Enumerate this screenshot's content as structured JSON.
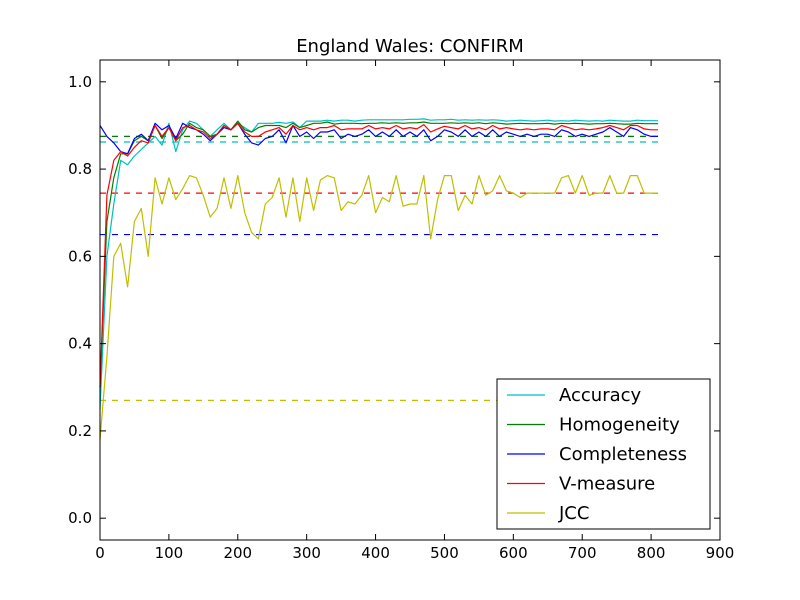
{
  "chart_data": {
    "type": "line",
    "title": "England Wales: CONFIRM",
    "xlabel": "",
    "ylabel": "",
    "xlim": [
      0,
      900
    ],
    "ylim": [
      -0.05,
      1.05
    ],
    "xticks": [
      0,
      100,
      200,
      300,
      400,
      500,
      600,
      700,
      800,
      900
    ],
    "yticks": [
      0.0,
      0.2,
      0.4,
      0.6,
      0.8,
      1.0
    ],
    "xtick_labels": [
      "0",
      "100",
      "200",
      "300",
      "400",
      "500",
      "600",
      "700",
      "800",
      "900"
    ],
    "ytick_labels": [
      "0.0",
      "0.2",
      "0.4",
      "0.6",
      "0.8",
      "1.0"
    ],
    "grid": false,
    "legend_position": "lower-right",
    "x": [
      0,
      10,
      20,
      30,
      40,
      50,
      60,
      70,
      80,
      90,
      100,
      110,
      120,
      130,
      140,
      150,
      160,
      170,
      180,
      190,
      200,
      210,
      220,
      230,
      240,
      250,
      260,
      270,
      280,
      290,
      300,
      310,
      320,
      330,
      340,
      350,
      360,
      370,
      380,
      390,
      400,
      410,
      420,
      430,
      440,
      450,
      460,
      470,
      480,
      490,
      500,
      510,
      520,
      530,
      540,
      550,
      560,
      570,
      580,
      590,
      600,
      610,
      620,
      630,
      640,
      650,
      660,
      670,
      680,
      690,
      700,
      710,
      720,
      730,
      740,
      750,
      760,
      770,
      780,
      790,
      800,
      810
    ],
    "series": [
      {
        "name": "Accuracy",
        "color": "#00bfbf",
        "values": [
          0.25,
          0.6,
          0.72,
          0.82,
          0.81,
          0.83,
          0.845,
          0.86,
          0.875,
          0.855,
          0.905,
          0.84,
          0.89,
          0.91,
          0.905,
          0.89,
          0.875,
          0.89,
          0.905,
          0.89,
          0.905,
          0.895,
          0.885,
          0.905,
          0.905,
          0.905,
          0.907,
          0.905,
          0.908,
          0.895,
          0.91,
          0.91,
          0.91,
          0.912,
          0.91,
          0.912,
          0.912,
          0.91,
          0.912,
          0.913,
          0.913,
          0.913,
          0.913,
          0.913,
          0.913,
          0.914,
          0.914,
          0.915,
          0.912,
          0.913,
          0.913,
          0.914,
          0.912,
          0.913,
          0.912,
          0.913,
          0.912,
          0.913,
          0.912,
          0.91,
          0.911,
          0.912,
          0.911,
          0.91,
          0.911,
          0.912,
          0.91,
          0.911,
          0.91,
          0.912,
          0.911,
          0.91,
          0.911,
          0.91,
          0.912,
          0.911,
          0.91,
          0.91,
          0.912,
          0.911,
          0.911,
          0.911
        ]
      },
      {
        "name": "Homogeneity",
        "color": "#008000",
        "values": [
          0.3,
          0.68,
          0.78,
          0.835,
          0.835,
          0.865,
          0.875,
          0.865,
          0.9,
          0.87,
          0.895,
          0.865,
          0.88,
          0.905,
          0.895,
          0.89,
          0.875,
          0.88,
          0.9,
          0.89,
          0.91,
          0.89,
          0.885,
          0.895,
          0.9,
          0.9,
          0.9,
          0.895,
          0.905,
          0.895,
          0.9,
          0.905,
          0.905,
          0.908,
          0.903,
          0.905,
          0.905,
          0.905,
          0.904,
          0.905,
          0.905,
          0.906,
          0.905,
          0.906,
          0.905,
          0.906,
          0.906,
          0.908,
          0.905,
          0.905,
          0.905,
          0.906,
          0.905,
          0.906,
          0.905,
          0.906,
          0.904,
          0.906,
          0.905,
          0.903,
          0.904,
          0.905,
          0.904,
          0.904,
          0.904,
          0.905,
          0.903,
          0.905,
          0.904,
          0.905,
          0.904,
          0.903,
          0.904,
          0.904,
          0.905,
          0.904,
          0.903,
          0.903,
          0.905,
          0.904,
          0.904,
          0.904
        ]
      },
      {
        "name": "Completeness",
        "color": "#0000ff",
        "values": [
          0.9,
          0.875,
          0.86,
          0.84,
          0.835,
          0.87,
          0.88,
          0.865,
          0.905,
          0.89,
          0.9,
          0.87,
          0.905,
          0.895,
          0.89,
          0.88,
          0.865,
          0.88,
          0.895,
          0.89,
          0.905,
          0.88,
          0.86,
          0.855,
          0.87,
          0.875,
          0.89,
          0.86,
          0.9,
          0.875,
          0.885,
          0.87,
          0.885,
          0.885,
          0.89,
          0.87,
          0.88,
          0.875,
          0.88,
          0.89,
          0.875,
          0.885,
          0.875,
          0.89,
          0.875,
          0.885,
          0.875,
          0.89,
          0.865,
          0.875,
          0.89,
          0.885,
          0.875,
          0.89,
          0.875,
          0.885,
          0.875,
          0.89,
          0.875,
          0.885,
          0.88,
          0.875,
          0.88,
          0.875,
          0.88,
          0.88,
          0.875,
          0.89,
          0.885,
          0.875,
          0.88,
          0.875,
          0.88,
          0.885,
          0.895,
          0.885,
          0.875,
          0.895,
          0.89,
          0.88,
          0.875,
          0.875
        ]
      },
      {
        "name": "V-measure",
        "color": "#ff0000",
        "values": [
          0.3,
          0.74,
          0.82,
          0.84,
          0.83,
          0.85,
          0.865,
          0.86,
          0.9,
          0.875,
          0.895,
          0.865,
          0.895,
          0.9,
          0.89,
          0.885,
          0.87,
          0.88,
          0.9,
          0.89,
          0.905,
          0.885,
          0.875,
          0.875,
          0.885,
          0.89,
          0.895,
          0.88,
          0.9,
          0.89,
          0.895,
          0.89,
          0.895,
          0.895,
          0.9,
          0.89,
          0.892,
          0.892,
          0.892,
          0.9,
          0.892,
          0.895,
          0.892,
          0.9,
          0.892,
          0.895,
          0.892,
          0.902,
          0.885,
          0.892,
          0.898,
          0.895,
          0.892,
          0.9,
          0.892,
          0.895,
          0.89,
          0.9,
          0.892,
          0.895,
          0.892,
          0.89,
          0.892,
          0.89,
          0.892,
          0.892,
          0.89,
          0.9,
          0.895,
          0.89,
          0.892,
          0.89,
          0.892,
          0.895,
          0.9,
          0.895,
          0.89,
          0.9,
          0.9,
          0.892,
          0.89,
          0.89
        ]
      },
      {
        "name": "JCC",
        "color": "#bfbf00",
        "values": [
          0.18,
          0.37,
          0.6,
          0.63,
          0.53,
          0.68,
          0.71,
          0.6,
          0.78,
          0.72,
          0.78,
          0.73,
          0.755,
          0.785,
          0.78,
          0.74,
          0.69,
          0.71,
          0.78,
          0.71,
          0.785,
          0.7,
          0.655,
          0.64,
          0.72,
          0.735,
          0.78,
          0.69,
          0.78,
          0.68,
          0.78,
          0.705,
          0.775,
          0.785,
          0.78,
          0.705,
          0.725,
          0.72,
          0.74,
          0.785,
          0.7,
          0.735,
          0.725,
          0.785,
          0.715,
          0.72,
          0.72,
          0.785,
          0.64,
          0.73,
          0.785,
          0.785,
          0.705,
          0.74,
          0.72,
          0.785,
          0.74,
          0.75,
          0.785,
          0.75,
          0.745,
          0.735,
          0.745,
          0.745,
          0.745,
          0.745,
          0.745,
          0.78,
          0.785,
          0.745,
          0.785,
          0.74,
          0.745,
          0.745,
          0.785,
          0.745,
          0.745,
          0.785,
          0.785,
          0.745,
          0.745,
          0.745
        ]
      }
    ],
    "reference_lines": [
      {
        "series": "Accuracy",
        "color": "#00bfbf",
        "y": 0.862,
        "x_start": 0,
        "x_end": 815
      },
      {
        "series": "Homogeneity",
        "color": "#008000",
        "y": 0.875,
        "x_start": 0,
        "x_end": 815
      },
      {
        "series": "Completeness",
        "color": "#0000ff",
        "y": 0.65,
        "x_start": 0,
        "x_end": 815
      },
      {
        "series": "V-measure",
        "color": "#ff0000",
        "y": 0.745,
        "x_start": 0,
        "x_end": 815
      },
      {
        "series": "JCC",
        "color": "#bfbf00",
        "y": 0.27,
        "x_start": 0,
        "x_end": 815
      }
    ]
  }
}
